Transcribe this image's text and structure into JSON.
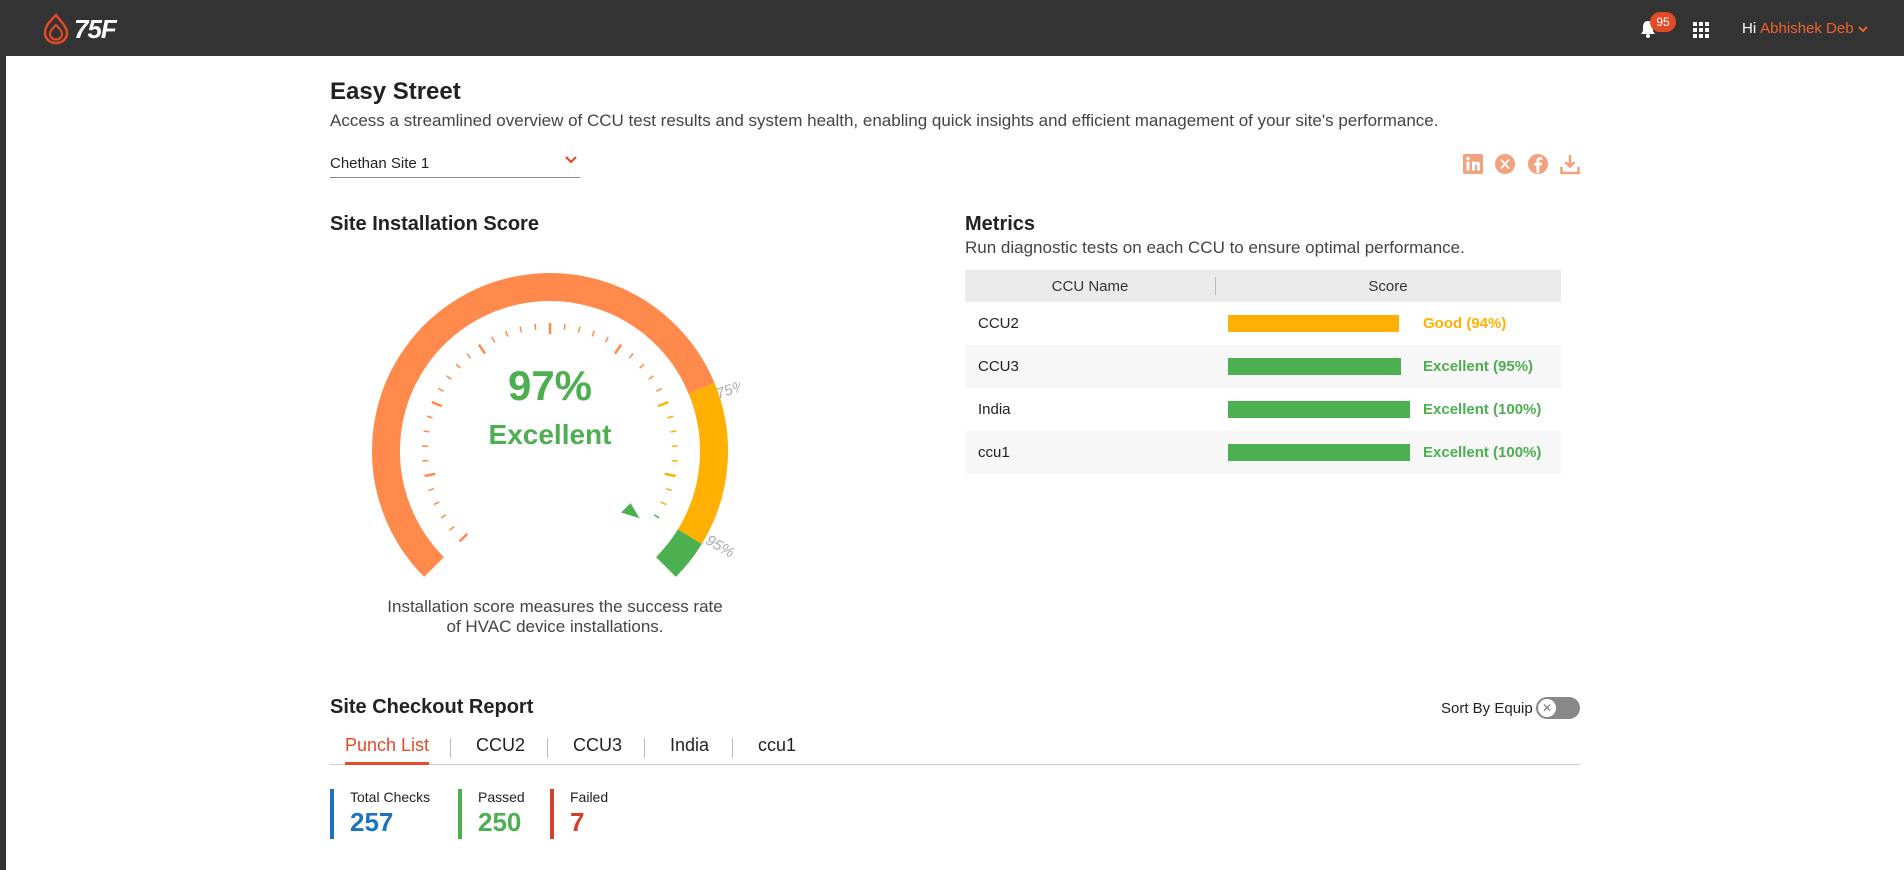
{
  "header": {
    "logo_text": "75F",
    "notification_count": "95",
    "greeting": "Hi",
    "user_name": "Abhishek Deb"
  },
  "page": {
    "title": "Easy Street",
    "subtitle": "Access a streamlined overview of CCU test results and system health, enabling quick insights and efficient management of your site's performance.",
    "site_selected": "Chethan Site 1"
  },
  "share_icons": [
    "linkedin-icon",
    "x-icon",
    "facebook-icon",
    "download-icon"
  ],
  "installation": {
    "title": "Site Installation Score",
    "score": "97%",
    "rating": "Excellent",
    "score_value": 97,
    "threshold_low": "75%",
    "threshold_high": "95%",
    "caption_line1": "Installation score measures the success rate",
    "caption_line2": "of HVAC device installations.",
    "colors": {
      "low": "#ff8a4c",
      "mid": "#ffb000",
      "high": "#4caf50"
    }
  },
  "metrics": {
    "title": "Metrics",
    "subtitle": "Run diagnostic tests on each CCU to ensure optimal performance.",
    "col_name": "CCU Name",
    "col_score": "Score",
    "rows": [
      {
        "name": "CCU2",
        "label": "Good (94%)",
        "value": 94,
        "color": "#ffb000"
      },
      {
        "name": "CCU3",
        "label": "Excellent (95%)",
        "value": 95,
        "color": "#4caf50"
      },
      {
        "name": "India",
        "label": "Excellent (100%)",
        "value": 100,
        "color": "#4caf50"
      },
      {
        "name": "ccu1",
        "label": "Excellent (100%)",
        "value": 100,
        "color": "#4caf50"
      }
    ]
  },
  "checkout": {
    "title": "Site Checkout Report",
    "sort_label": "Sort By Equip",
    "tabs": [
      "Punch List",
      "CCU2",
      "CCU3",
      "India",
      "ccu1"
    ],
    "total_label": "Total Checks",
    "total_value": "257",
    "passed_label": "Passed",
    "passed_value": "250",
    "failed_label": "Failed",
    "failed_value": "7"
  }
}
